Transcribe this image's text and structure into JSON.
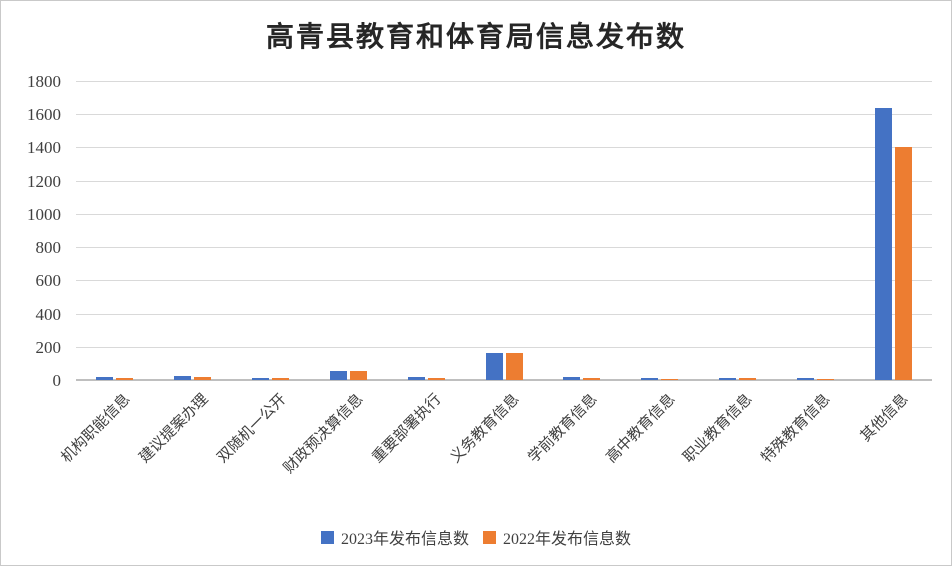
{
  "title": "高青县教育和体育局信息发布数",
  "colors": {
    "series_2023": "#4472C4",
    "series_2022": "#ED7D31",
    "gridline": "#D9D9D9",
    "axis_line": "#BFBFBF",
    "label_text": "#404040",
    "title_text": "#262626"
  },
  "chart_data": {
    "type": "bar",
    "title": "高青县教育和体育局信息发布数",
    "categories": [
      "机构职能信息",
      "建议提案办理",
      "双随机一公开",
      "财政预决算信息",
      "重要部署执行",
      "义务教育信息",
      "学前教育信息",
      "高中教育信息",
      "职业教育信息",
      "特殊教育信息",
      "其他信息"
    ],
    "series": [
      {
        "name": "2023年发布信息数",
        "color": "#4472C4",
        "values": [
          20,
          22,
          13,
          57,
          20,
          165,
          18,
          10,
          12,
          10,
          1640
        ]
      },
      {
        "name": "2022年发布信息数",
        "color": "#ED7D31",
        "values": [
          12,
          20,
          10,
          55,
          15,
          160,
          10,
          9,
          10,
          8,
          1400
        ]
      }
    ],
    "xlabel": "",
    "ylabel": "",
    "ylim": [
      0,
      1800
    ],
    "ytick_interval": 200,
    "yticks": [
      0,
      200,
      400,
      600,
      800,
      1000,
      1200,
      1400,
      1600,
      1800
    ],
    "grid": true,
    "legend_position": "bottom",
    "x_label_rotation_deg": 45
  }
}
